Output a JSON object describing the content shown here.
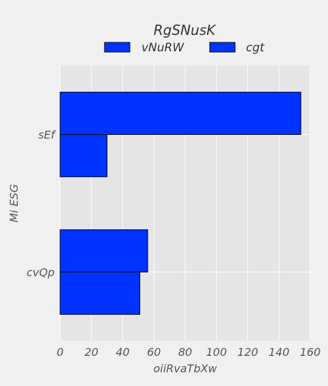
{
  "chart_data": {
    "type": "bar",
    "orientation": "horizontal",
    "title": "RgSNusK",
    "xlabel": "oiiRvaTbXw",
    "ylabel": "Mi ESG",
    "categories": [
      "sEf",
      "cvQp"
    ],
    "series": [
      {
        "name": "vNuRW",
        "values": [
          154,
          56
        ],
        "color": "#0033ff"
      },
      {
        "name": "cgt",
        "values": [
          30,
          51
        ],
        "color": "#0033ff"
      }
    ],
    "xlim": [
      0,
      160
    ],
    "xticks": [
      0,
      20,
      40,
      60,
      80,
      100,
      120,
      140,
      160
    ],
    "grid": true,
    "legend_position": "top-center",
    "background_color": "#e5e5e5",
    "edge_color": "#000000"
  }
}
